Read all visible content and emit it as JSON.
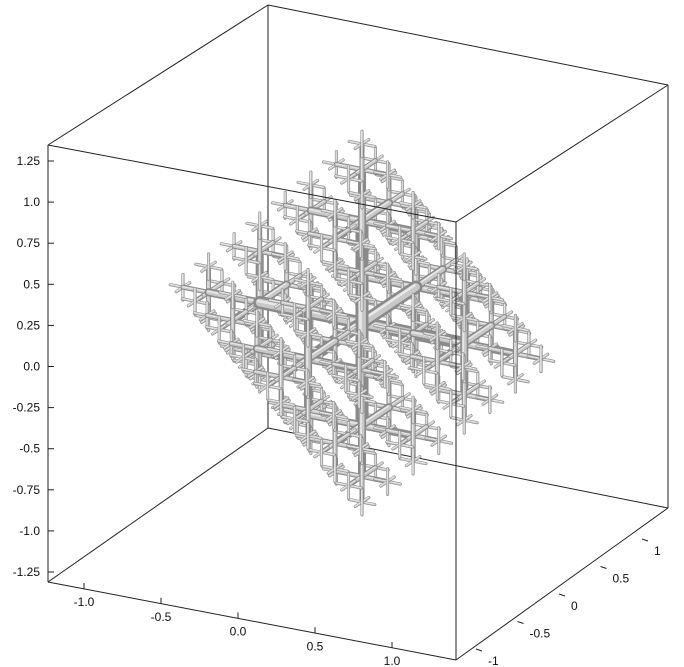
{
  "figure": {
    "type": "3d-structure",
    "box": "on"
  },
  "axes": {
    "z": {
      "ticks": [
        "1.25",
        "1.0",
        "0.75",
        "0.5",
        "0.25",
        "0.0",
        "-0.25",
        "-0.5",
        "-0.75",
        "-1.0",
        "-1.25"
      ]
    },
    "x": {
      "ticks": [
        "-1.0",
        "-0.5",
        "0.0",
        "0.5",
        "1.0"
      ]
    },
    "y": {
      "ticks": [
        "1",
        "0.5",
        "0",
        "-0.5",
        "-1"
      ]
    }
  },
  "colors": {
    "tube_dark": "#8a8a8a",
    "tube_light": "#c8c8c8",
    "tube_highlight": "#e8e8e8"
  }
}
